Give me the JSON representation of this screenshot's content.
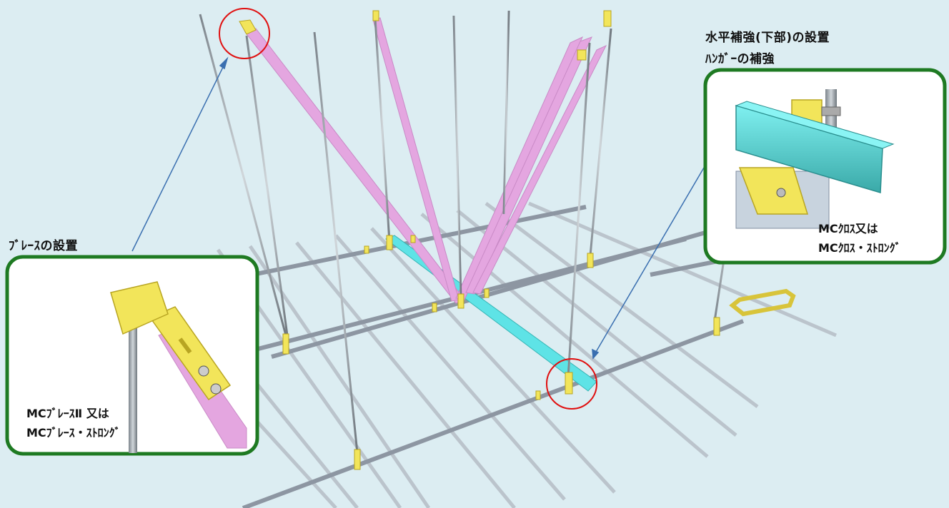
{
  "headings": {
    "left": "ﾌﾞﾚｰｽの設置",
    "right_line1": "水平補強(下部)の設置",
    "right_line2": "ﾊﾝｶﾞｰの補強"
  },
  "callouts": {
    "left": {
      "line1": "MCﾌﾞﾚｰｽⅡ 又は",
      "line2": "MCﾌﾞﾚｰｽ・ｽﾄﾛﾝｸﾞ"
    },
    "right": {
      "line1": "MCｸﾛｽ又は",
      "line2": "MCｸﾛｽ・ｽﾄﾛﾝｸﾞ"
    }
  },
  "colors": {
    "background": "#dcedf2",
    "callout_border": "#1e7a22",
    "highlight_circle": "#e01010",
    "leader_line": "#3a6fb0",
    "brace": "#e4a6e0",
    "horizontal_reinforcement": "#5ee3e6",
    "channel": "#8d96a2",
    "clip": "#f2e55a"
  }
}
